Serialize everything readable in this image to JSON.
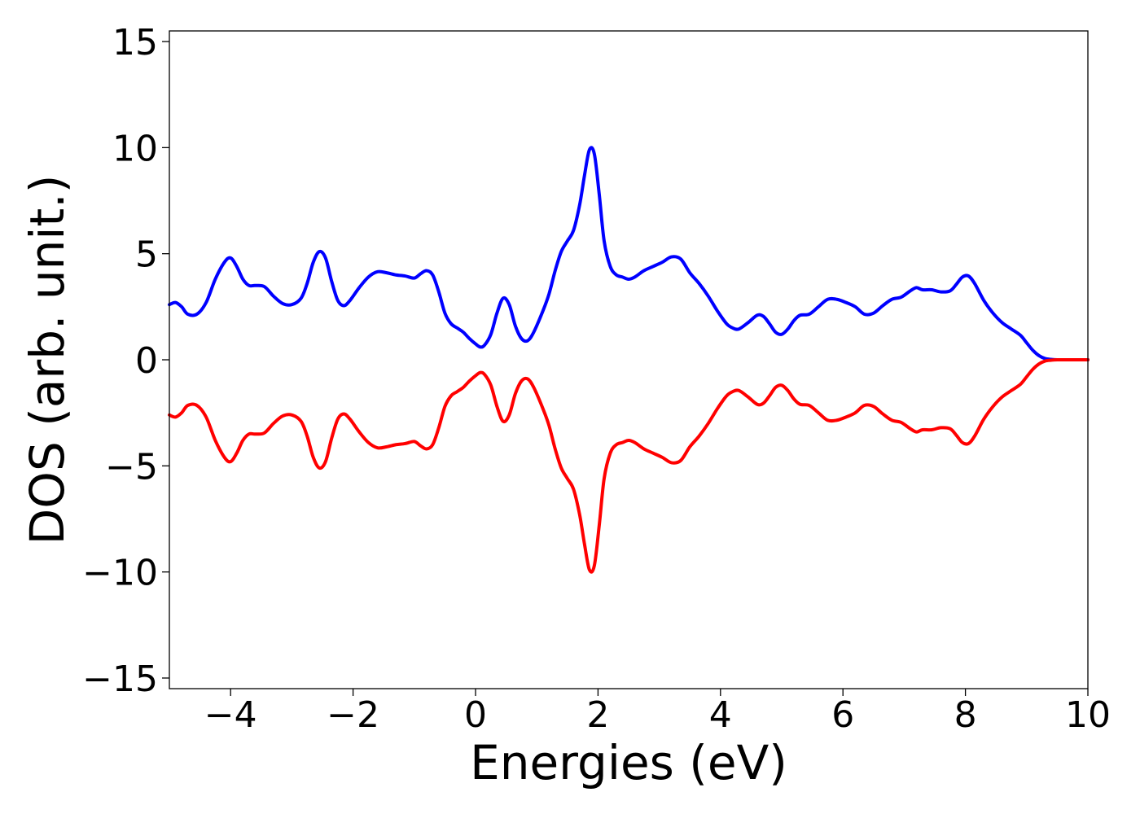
{
  "chart_data": {
    "type": "line",
    "title": "",
    "xlabel": "Energies (eV)",
    "ylabel": "DOS (arb. unit.)",
    "xlim": [
      -5,
      10
    ],
    "ylim": [
      -15.5,
      15.5
    ],
    "x_ticks": [
      -4,
      -2,
      0,
      2,
      4,
      6,
      8,
      10
    ],
    "x_tick_labels": [
      "−4",
      "−2",
      "0",
      "2",
      "4",
      "6",
      "8",
      "10"
    ],
    "y_ticks": [
      -15,
      -10,
      -5,
      0,
      5,
      10,
      15
    ],
    "y_tick_labels": [
      "−15",
      "−10",
      "−5",
      "0",
      "5",
      "10",
      "15"
    ],
    "grid": false,
    "legend": "none",
    "series": [
      {
        "color": "#0000ff",
        "x": [
          -5.0,
          -4.9,
          -4.8,
          -4.7,
          -4.55,
          -4.4,
          -4.25,
          -4.1,
          -4.0,
          -3.9,
          -3.8,
          -3.7,
          -3.6,
          -3.45,
          -3.3,
          -3.15,
          -3.0,
          -2.85,
          -2.75,
          -2.65,
          -2.55,
          -2.45,
          -2.35,
          -2.25,
          -2.15,
          -2.05,
          -1.9,
          -1.75,
          -1.6,
          -1.45,
          -1.3,
          -1.15,
          -1.0,
          -0.9,
          -0.8,
          -0.7,
          -0.6,
          -0.5,
          -0.4,
          -0.3,
          -0.2,
          -0.1,
          0.0,
          0.08,
          0.15,
          0.25,
          0.35,
          0.45,
          0.55,
          0.65,
          0.75,
          0.85,
          0.95,
          1.1,
          1.2,
          1.3,
          1.4,
          1.5,
          1.6,
          1.7,
          1.78,
          1.86,
          1.94,
          2.02,
          2.1,
          2.2,
          2.3,
          2.4,
          2.5,
          2.6,
          2.75,
          2.9,
          3.05,
          3.2,
          3.35,
          3.5,
          3.65,
          3.8,
          3.95,
          4.1,
          4.2,
          4.3,
          4.45,
          4.6,
          4.7,
          4.8,
          4.9,
          5.0,
          5.1,
          5.2,
          5.3,
          5.45,
          5.6,
          5.75,
          5.9,
          6.05,
          6.2,
          6.35,
          6.5,
          6.65,
          6.8,
          6.95,
          7.1,
          7.2,
          7.3,
          7.45,
          7.6,
          7.75,
          7.85,
          7.95,
          8.05,
          8.15,
          8.3,
          8.45,
          8.6,
          8.75,
          8.9,
          9.0,
          9.1,
          9.2,
          9.3,
          9.4,
          9.5,
          9.7,
          10.0
        ],
        "y": [
          2.6,
          2.7,
          2.5,
          2.15,
          2.15,
          2.7,
          3.8,
          4.6,
          4.8,
          4.4,
          3.8,
          3.5,
          3.5,
          3.45,
          3.0,
          2.65,
          2.6,
          2.9,
          3.6,
          4.6,
          5.1,
          4.8,
          3.7,
          2.8,
          2.55,
          2.8,
          3.4,
          3.9,
          4.15,
          4.1,
          4.0,
          3.95,
          3.85,
          4.05,
          4.2,
          4.0,
          3.2,
          2.2,
          1.7,
          1.5,
          1.3,
          1.0,
          0.75,
          0.6,
          0.7,
          1.2,
          2.2,
          2.9,
          2.6,
          1.6,
          1.0,
          0.9,
          1.3,
          2.3,
          3.1,
          4.2,
          5.1,
          5.6,
          6.1,
          7.3,
          8.7,
          9.9,
          9.7,
          7.8,
          5.6,
          4.4,
          4.0,
          3.9,
          3.8,
          3.9,
          4.2,
          4.4,
          4.6,
          4.85,
          4.75,
          4.1,
          3.6,
          3.0,
          2.3,
          1.7,
          1.5,
          1.45,
          1.75,
          2.1,
          2.05,
          1.7,
          1.3,
          1.2,
          1.45,
          1.85,
          2.1,
          2.15,
          2.5,
          2.85,
          2.85,
          2.7,
          2.5,
          2.15,
          2.2,
          2.55,
          2.85,
          2.95,
          3.25,
          3.4,
          3.3,
          3.3,
          3.2,
          3.25,
          3.55,
          3.9,
          3.95,
          3.6,
          2.8,
          2.2,
          1.75,
          1.45,
          1.15,
          0.8,
          0.45,
          0.2,
          0.06,
          0.02,
          0.0,
          0.0,
          0.0
        ]
      },
      {
        "color": "#ff0000",
        "x": [
          -5.0,
          -4.9,
          -4.8,
          -4.7,
          -4.55,
          -4.4,
          -4.25,
          -4.1,
          -4.0,
          -3.9,
          -3.8,
          -3.7,
          -3.6,
          -3.45,
          -3.3,
          -3.15,
          -3.0,
          -2.85,
          -2.75,
          -2.65,
          -2.55,
          -2.45,
          -2.35,
          -2.25,
          -2.15,
          -2.05,
          -1.9,
          -1.75,
          -1.6,
          -1.45,
          -1.3,
          -1.15,
          -1.0,
          -0.9,
          -0.8,
          -0.7,
          -0.6,
          -0.5,
          -0.4,
          -0.3,
          -0.2,
          -0.1,
          0.0,
          0.08,
          0.15,
          0.25,
          0.35,
          0.45,
          0.55,
          0.65,
          0.75,
          0.85,
          0.95,
          1.1,
          1.2,
          1.3,
          1.4,
          1.5,
          1.6,
          1.7,
          1.78,
          1.86,
          1.94,
          2.02,
          2.1,
          2.2,
          2.3,
          2.4,
          2.5,
          2.6,
          2.75,
          2.9,
          3.05,
          3.2,
          3.35,
          3.5,
          3.65,
          3.8,
          3.95,
          4.1,
          4.2,
          4.3,
          4.45,
          4.6,
          4.7,
          4.8,
          4.9,
          5.0,
          5.1,
          5.2,
          5.3,
          5.45,
          5.6,
          5.75,
          5.9,
          6.05,
          6.2,
          6.35,
          6.5,
          6.65,
          6.8,
          6.95,
          7.1,
          7.2,
          7.3,
          7.45,
          7.6,
          7.75,
          7.85,
          7.95,
          8.05,
          8.15,
          8.3,
          8.45,
          8.6,
          8.75,
          8.9,
          9.0,
          9.1,
          9.2,
          9.3,
          9.4,
          9.5,
          9.7,
          10.0
        ],
        "y": [
          -2.6,
          -2.7,
          -2.5,
          -2.15,
          -2.15,
          -2.7,
          -3.8,
          -4.6,
          -4.8,
          -4.4,
          -3.8,
          -3.5,
          -3.5,
          -3.45,
          -3.0,
          -2.65,
          -2.6,
          -2.9,
          -3.6,
          -4.6,
          -5.1,
          -4.8,
          -3.7,
          -2.8,
          -2.55,
          -2.8,
          -3.4,
          -3.9,
          -4.15,
          -4.1,
          -4.0,
          -3.95,
          -3.85,
          -4.05,
          -4.2,
          -4.0,
          -3.2,
          -2.2,
          -1.7,
          -1.5,
          -1.3,
          -1.0,
          -0.75,
          -0.6,
          -0.7,
          -1.2,
          -2.2,
          -2.9,
          -2.6,
          -1.6,
          -1.0,
          -0.9,
          -1.3,
          -2.3,
          -3.1,
          -4.2,
          -5.1,
          -5.6,
          -6.1,
          -7.3,
          -8.7,
          -9.9,
          -9.7,
          -7.8,
          -5.6,
          -4.4,
          -4.0,
          -3.9,
          -3.8,
          -3.9,
          -4.2,
          -4.4,
          -4.6,
          -4.85,
          -4.75,
          -4.1,
          -3.6,
          -3.0,
          -2.3,
          -1.7,
          -1.5,
          -1.45,
          -1.75,
          -2.1,
          -2.05,
          -1.7,
          -1.3,
          -1.2,
          -1.45,
          -1.85,
          -2.1,
          -2.15,
          -2.5,
          -2.85,
          -2.85,
          -2.7,
          -2.5,
          -2.15,
          -2.2,
          -2.55,
          -2.85,
          -2.95,
          -3.25,
          -3.4,
          -3.3,
          -3.3,
          -3.2,
          -3.25,
          -3.55,
          -3.9,
          -3.95,
          -3.6,
          -2.8,
          -2.2,
          -1.75,
          -1.45,
          -1.15,
          -0.8,
          -0.45,
          -0.2,
          -0.06,
          -0.02,
          0.0,
          0.0,
          0.0
        ]
      }
    ]
  }
}
